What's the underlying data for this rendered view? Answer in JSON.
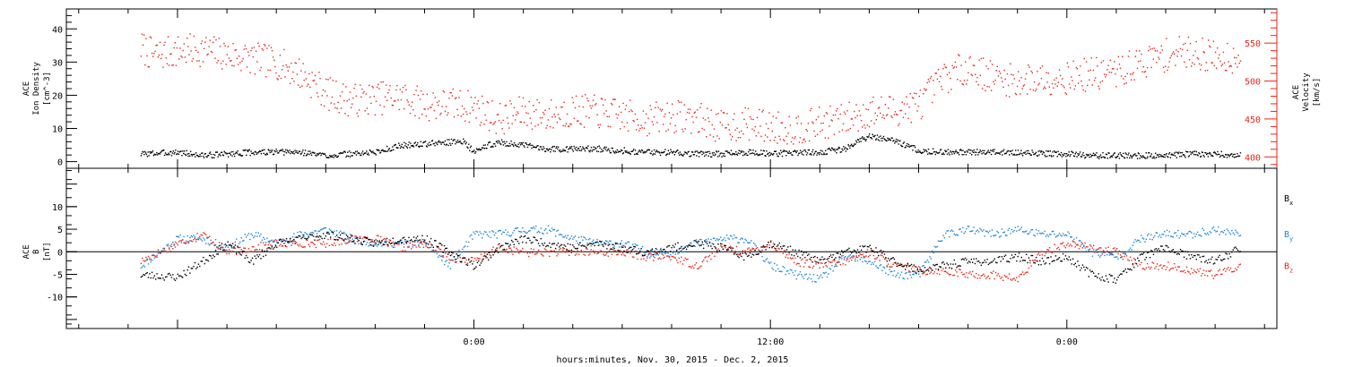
{
  "colors": {
    "black": "#000000",
    "red": "#e8261a",
    "blue": "#1a86d8"
  },
  "xaxis": {
    "label": "hours:minutes, Nov. 30, 2015 - Dec. 2, 2015",
    "range_hours": [
      -16.5,
      32.5
    ],
    "major_ticks": [
      {
        "hours": 0,
        "label": "0:00"
      },
      {
        "hours": 12,
        "label": "12:00"
      },
      {
        "hours": 24,
        "label": "0:00"
      }
    ],
    "minor_step_hours": 2
  },
  "panel1": {
    "left_label": [
      "ACE",
      "Ion Density",
      "[cm^-3]"
    ],
    "right_label": [
      "ACE",
      "Velocity",
      "[km/s]"
    ],
    "left_range": [
      -2,
      46
    ],
    "left_ticks": [
      "0",
      "10",
      "20",
      "30",
      "40"
    ],
    "right_range": [
      385,
      595
    ],
    "right_ticks": [
      "400",
      "450",
      "500",
      "550"
    ]
  },
  "panel2": {
    "left_label": [
      "ACE",
      "B",
      "[nT]"
    ],
    "range": [
      -17,
      18.5
    ],
    "ticks": [
      "-10",
      "-5",
      "0",
      "5",
      "10"
    ],
    "legend": [
      "Bx",
      "By",
      "Bz"
    ]
  },
  "chart_data": [
    {
      "type": "scatter",
      "title": "",
      "xlabel": "hours:minutes, Nov. 30, 2015 - Dec. 2, 2015",
      "ylabel": "ACE Ion Density [cm^-3]",
      "y2label": "ACE Velocity [km/s]",
      "xlim_hours": [
        -16.5,
        32.5
      ],
      "ylim": [
        -2,
        46
      ],
      "y2lim": [
        385,
        595
      ],
      "grid": false,
      "series": [
        {
          "axis": "left",
          "color": "#000000",
          "x": [
            -13.5,
            -12,
            -11,
            -10,
            -9,
            -8,
            -7,
            -6,
            -5,
            -4,
            -3,
            -2,
            -1,
            -0.5,
            0,
            0.5,
            1,
            2,
            3,
            4,
            5,
            6,
            7,
            8,
            9,
            10,
            11,
            12,
            13,
            14,
            15,
            16,
            17,
            18,
            19,
            20,
            21,
            22,
            23,
            24,
            25,
            26,
            27,
            28,
            29,
            30,
            31
          ],
          "values": [
            2.5,
            3,
            2,
            2.5,
            3,
            3,
            3,
            2,
            2.5,
            3,
            5,
            5.5,
            6,
            6.5,
            3,
            5,
            6,
            5,
            4,
            4,
            4,
            3.5,
            3,
            3,
            2.5,
            2.5,
            3,
            2.5,
            3,
            3,
            4,
            8,
            6.5,
            3.5,
            3,
            3,
            3,
            3,
            2.5,
            2.5,
            2,
            2,
            2,
            2,
            2.5,
            2.5,
            2
          ]
        },
        {
          "axis": "right",
          "color": "#e8261a",
          "x": [
            -13.5,
            -13,
            -12,
            -11,
            -10,
            -9,
            -8,
            -7,
            -6,
            -5,
            -4,
            -3,
            -2,
            -1,
            0,
            1,
            2,
            3,
            4,
            5,
            6,
            7,
            8,
            9,
            10,
            11,
            12,
            13,
            14,
            15,
            16,
            17,
            18,
            19,
            20,
            21,
            22,
            23,
            24,
            25,
            26,
            27,
            28,
            29,
            30,
            31
          ],
          "values": [
            545,
            535,
            540,
            542,
            535,
            530,
            525,
            510,
            485,
            475,
            478,
            480,
            470,
            470,
            467,
            450,
            460,
            455,
            462,
            460,
            455,
            450,
            455,
            452,
            440,
            445,
            440,
            438,
            445,
            450,
            460,
            462,
            470,
            505,
            520,
            505,
            500,
            505,
            505,
            510,
            512,
            525,
            535,
            540,
            532,
            533
          ]
        }
      ]
    },
    {
      "type": "scatter",
      "title": "",
      "xlabel": "hours:minutes, Nov. 30, 2015 - Dec. 2, 2015",
      "ylabel": "ACE B [nT]",
      "xlim_hours": [
        -16.5,
        32.5
      ],
      "ylim": [
        -17,
        18.5
      ],
      "grid": false,
      "series": [
        {
          "name": "Bx",
          "color": "#000000",
          "x": [
            -13.5,
            -12,
            -11,
            -10,
            -9,
            -8,
            -7,
            -6,
            -5,
            -4,
            -3,
            -2,
            -1,
            0,
            1,
            2,
            3,
            4,
            5,
            6,
            7,
            8,
            9,
            10,
            11,
            12,
            13,
            14,
            15,
            16,
            17,
            18,
            19,
            20,
            21,
            22,
            23,
            24,
            25,
            26,
            27,
            28,
            29,
            30,
            31
          ],
          "values": [
            -5,
            -5.5,
            -2,
            2,
            -2,
            2,
            3,
            4,
            3,
            2,
            3,
            3,
            0,
            -3,
            1,
            3,
            2,
            1,
            2,
            1,
            0,
            1,
            2,
            1,
            -1,
            2,
            0,
            -2,
            0,
            1,
            -2,
            -4,
            -3,
            -2,
            -2,
            -1,
            -2,
            -1,
            -5,
            -6,
            -1,
            1,
            -1,
            -2,
            1
          ]
        },
        {
          "name": "By",
          "color": "#1a86d8",
          "x": [
            -13.5,
            -12,
            -11,
            -10,
            -9,
            -8,
            -7,
            -6,
            -5,
            -4,
            -3,
            -2,
            -1,
            0,
            1,
            2,
            3,
            4,
            5,
            6,
            7,
            8,
            9,
            10,
            11,
            12,
            13,
            14,
            15,
            16,
            17,
            18,
            19,
            20,
            21,
            22,
            23,
            24,
            25,
            26,
            27,
            28,
            29,
            30,
            31
          ],
          "values": [
            -3,
            3,
            3,
            1,
            4,
            2,
            4,
            5,
            3,
            2,
            2,
            2,
            -3,
            4,
            4,
            5,
            5,
            3,
            2,
            2,
            0,
            0,
            2,
            3,
            3,
            -3,
            -5,
            -6,
            -1,
            -2,
            -5,
            -5,
            4,
            5,
            4,
            5,
            4,
            4,
            0,
            -1,
            3,
            4,
            4,
            5,
            4
          ]
        },
        {
          "name": "Bz",
          "color": "#e8261a",
          "x": [
            -13.5,
            -12,
            -11,
            -10,
            -9,
            -8,
            -7,
            -6,
            -5,
            -4,
            -3,
            -2,
            -1,
            0,
            1,
            2,
            3,
            4,
            5,
            6,
            7,
            8,
            9,
            10,
            11,
            12,
            13,
            14,
            15,
            16,
            17,
            18,
            19,
            20,
            21,
            22,
            23,
            24,
            25,
            26,
            27,
            28,
            29,
            30,
            31
          ],
          "values": [
            -2,
            2,
            4,
            0,
            1,
            2,
            2,
            2,
            3,
            3,
            1,
            2,
            -1,
            -2,
            1,
            0,
            0,
            0,
            0,
            0,
            -1,
            -1,
            -3,
            1,
            0,
            2,
            -2,
            -3,
            -2,
            0,
            -3,
            -4,
            -4,
            -5,
            -5,
            -6,
            0,
            2,
            1,
            0,
            -3,
            -3,
            -4,
            -5,
            -3
          ]
        }
      ]
    }
  ]
}
